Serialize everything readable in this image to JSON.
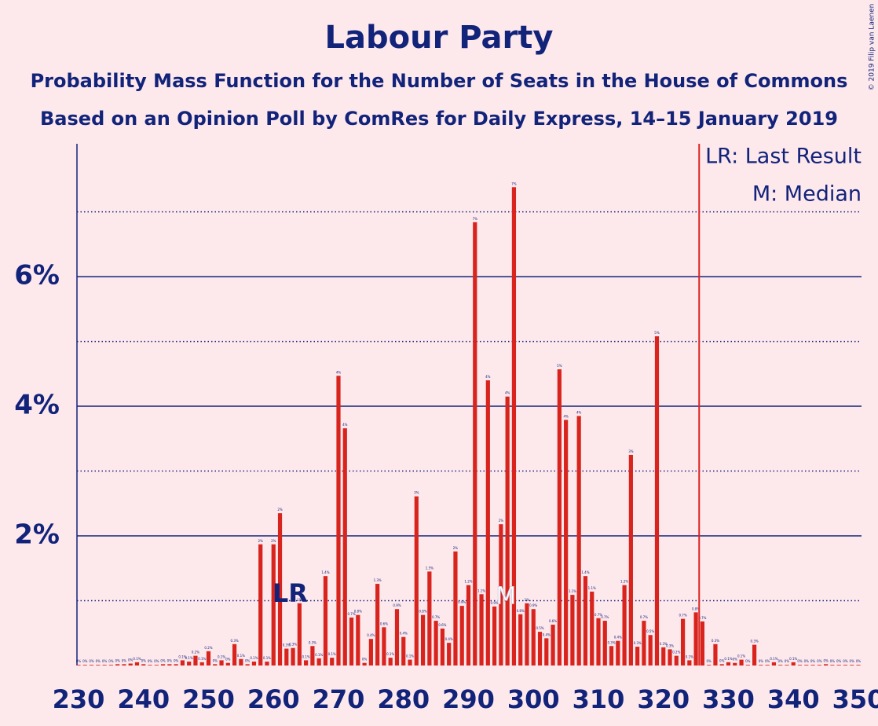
{
  "chart_data": {
    "type": "bar",
    "title": "Labour Party",
    "subtitle": "Probability Mass Function for the Number of Seats in the House of Commons",
    "subtitle2": "Based on an Opinion Poll by ComRes for Daily Express, 14–15 January 2019",
    "copyright": "© 2019 Filip van Laenen",
    "color": "#d9241e",
    "x": [
      230,
      231,
      232,
      233,
      234,
      235,
      236,
      237,
      238,
      239,
      240,
      241,
      242,
      243,
      244,
      245,
      246,
      247,
      248,
      249,
      250,
      251,
      252,
      253,
      254,
      255,
      256,
      257,
      258,
      259,
      260,
      261,
      262,
      263,
      264,
      265,
      266,
      267,
      268,
      269,
      270,
      271,
      272,
      273,
      274,
      275,
      276,
      277,
      278,
      279,
      280,
      281,
      282,
      283,
      284,
      285,
      286,
      287,
      288,
      289,
      290,
      291,
      292,
      293,
      294,
      295,
      296,
      297,
      298,
      299,
      300,
      301,
      302,
      303,
      304,
      305,
      306,
      307,
      308,
      309,
      310,
      311,
      312,
      313,
      314,
      315,
      316,
      317,
      318,
      319,
      320,
      321,
      322,
      323,
      324,
      325,
      326,
      327,
      328,
      329,
      330,
      331,
      332,
      333,
      334,
      335,
      336,
      337,
      338,
      339,
      340,
      341,
      342,
      343,
      344,
      345,
      346,
      347,
      348,
      349,
      350
    ],
    "values": [
      0.01,
      0.01,
      0.01,
      0.01,
      0.01,
      0.01,
      0.02,
      0.02,
      0.03,
      0.05,
      0.02,
      0.01,
      0.01,
      0.02,
      0.02,
      0.02,
      0.08,
      0.06,
      0.15,
      0.05,
      0.22,
      0.02,
      0.08,
      0.04,
      0.33,
      0.1,
      0.02,
      0.06,
      1.87,
      0.06,
      1.87,
      2.35,
      0.26,
      0.27,
      0.96,
      0.08,
      0.3,
      0.11,
      1.38,
      0.12,
      4.47,
      3.66,
      0.74,
      0.78,
      0.04,
      0.41,
      1.26,
      0.59,
      0.12,
      0.87,
      0.44,
      0.09,
      2.61,
      0.78,
      1.45,
      0.69,
      0.57,
      0.35,
      1.76,
      0.92,
      1.24,
      6.84,
      1.1,
      4.4,
      0.91,
      2.18,
      4.15,
      7.38,
      0.79,
      0.96,
      0.87,
      0.52,
      0.42,
      0.63,
      4.57,
      3.79,
      1.09,
      3.85,
      1.38,
      1.14,
      0.73,
      0.69,
      0.3,
      0.38,
      1.24,
      3.25,
      0.29,
      0.69,
      0.47,
      5.08,
      0.28,
      0.25,
      0.15,
      0.72,
      0.08,
      0.82,
      0.68,
      0.01,
      0.33,
      0.02,
      0.05,
      0.04,
      0.09,
      0.01,
      0.32,
      0.01,
      0.01,
      0.05,
      0.01,
      0.01,
      0.05,
      0.01,
      0.01,
      0.01,
      0.01,
      0.02,
      0.01,
      0.01,
      0.01,
      0.01,
      0.01
    ],
    "value_labels": [
      "0%",
      "0%",
      "0%",
      "0%",
      "0%",
      "0%",
      "0%",
      "0%",
      "0%",
      "0.1%",
      "0%",
      "0%",
      "0%",
      "0%",
      "0%",
      "0%",
      "0.1%",
      "0.1%",
      "0.2%",
      "0.1%",
      "0.2%",
      "0%",
      "0.1%",
      "0%",
      "0.3%",
      "0.1%",
      "0%",
      "0.1%",
      "2%",
      "0.1%",
      "2%",
      "2%",
      "0.3%",
      "0.3%",
      "1%",
      "0.1%",
      "0.3%",
      "0.1%",
      "1.4%",
      "0.1%",
      "4%",
      "4%",
      "0.7%",
      "0.8%",
      "0%",
      "0.4%",
      "1.3%",
      "0.6%",
      "0.1%",
      "0.9%",
      "0.4%",
      "0.1%",
      "3%",
      "0.8%",
      "1.5%",
      "0.7%",
      "0.6%",
      "0.4%",
      "2%",
      "0.9%",
      "1.2%",
      "7%",
      "1.1%",
      "4%",
      "0.9%",
      "2%",
      "4%",
      "7%",
      "0.8%",
      "1%",
      "0.9%",
      "0.5%",
      "0.4%",
      "0.6%",
      "5%",
      "4%",
      "1.1%",
      "4%",
      "1.4%",
      "1.1%",
      "0.7%",
      "0.7%",
      "0.3%",
      "0.4%",
      "1.2%",
      "3%",
      "0.3%",
      "0.7%",
      "0.5%",
      "5%",
      "0.3%",
      "0.3%",
      "0.2%",
      "0.7%",
      "0.1%",
      "0.8%",
      "0.7%",
      "0%",
      "0.3%",
      "0%",
      "0.1%",
      "0%",
      "0.1%",
      "0%",
      "0.3%",
      "0%",
      "0%",
      "0.1%",
      "0%",
      "0%",
      "0.1%",
      "0%",
      "0%",
      "0%",
      "0%",
      "0%",
      "0%",
      "0%",
      "0%",
      "0%",
      "0%"
    ],
    "xlim": [
      230,
      350
    ],
    "xticks": [
      230,
      240,
      250,
      260,
      270,
      280,
      290,
      300,
      310,
      320,
      330,
      340,
      350
    ],
    "ylim": [
      0,
      8.05
    ],
    "yticks": [
      {
        "value": 2,
        "label": "2%"
      },
      {
        "value": 4,
        "label": "4%"
      },
      {
        "value": 6,
        "label": "6%"
      }
    ],
    "minor_yticks": [
      1,
      3,
      5,
      7
    ],
    "last_result": {
      "x": 264,
      "label": "LR"
    },
    "median": {
      "x": 296,
      "label": "M"
    },
    "majority": 326,
    "legend": [
      "LR: Last Result",
      "M: Median"
    ]
  }
}
